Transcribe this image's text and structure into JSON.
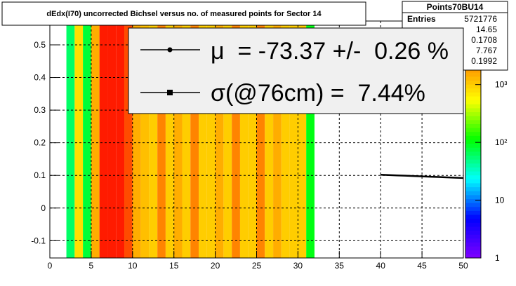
{
  "chart_data": {
    "type": "heatmap",
    "title": "dEdx(I70) uncorrected Bichsel versus no. of measured points for Sector 14",
    "xlim": [
      0,
      50
    ],
    "ylim": [
      -0.153,
      0.573
    ],
    "xticks": [
      0,
      5,
      10,
      15,
      20,
      25,
      30,
      35,
      40,
      45,
      50
    ],
    "yticks": [
      -0.1,
      0,
      0.1,
      0.2,
      0.3,
      0.4,
      0.5
    ],
    "grid": true,
    "log_z": true,
    "zlim": [
      1,
      12600
    ],
    "zticks": [
      1,
      10,
      {
        "value": 100,
        "label": "10²"
      },
      {
        "value": 1000,
        "label": "10³"
      }
    ],
    "palette": [
      "#8000ff",
      "#0000ff",
      "#00ffff",
      "#00ff00",
      "#ffff00",
      "#ff8000",
      "#ff0000"
    ],
    "x_bins": [
      2,
      3,
      4,
      5,
      6,
      7,
      8,
      9,
      10,
      11,
      12,
      13,
      14,
      15,
      16,
      17,
      18,
      19,
      20,
      21,
      22,
      23,
      24,
      25,
      26,
      27,
      28,
      29,
      30,
      31,
      32
    ],
    "z": [
      60,
      800,
      80,
      1500,
      9000,
      9000,
      9000,
      5000,
      1500,
      1200,
      1000,
      2500,
      1000,
      1500,
      1000,
      2500,
      1000,
      1000,
      1500,
      1000,
      2500,
      1000,
      1000,
      2500,
      1000,
      1500,
      1000,
      1000,
      1000,
      100
    ],
    "profile": {
      "color": "#000000",
      "x": [
        40,
        41,
        42,
        43,
        44,
        45,
        46,
        47,
        48,
        49,
        50
      ],
      "values": [
        0.102,
        0.101,
        0.1,
        0.099,
        0.098,
        0.097,
        0.096,
        0.095,
        0.094,
        0.093,
        0.092
      ]
    },
    "stats": {
      "title": "Points70BU14",
      "entries_label": "Entries",
      "values": [
        5721776,
        14.65,
        0.1708,
        7.767,
        0.1992
      ]
    },
    "legend": {
      "entries": [
        {
          "label": "μ  = -73.37 +/-  0.26 %",
          "marker": "circle"
        },
        {
          "label": "σ(@76cm) =  7.44%",
          "marker": "square"
        }
      ]
    }
  }
}
